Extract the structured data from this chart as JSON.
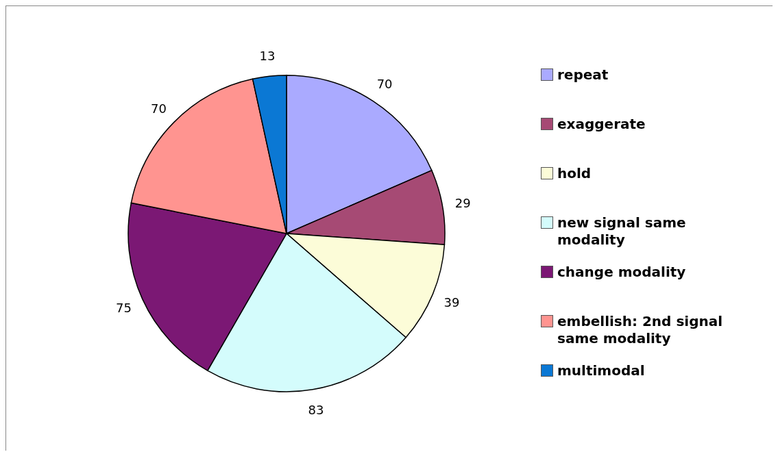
{
  "chart_data": {
    "type": "pie",
    "categories": [
      "repeat",
      "exaggerate",
      "hold",
      "new signal same modality",
      "change modality",
      "embellish: 2nd signal same modality",
      "multimodal"
    ],
    "values": [
      70,
      29,
      39,
      83,
      75,
      70,
      13
    ],
    "colors": [
      "#aaaaff",
      "#a64a74",
      "#fcfcd8",
      "#d4fcfc",
      "#7b1874",
      "#ff9490",
      "#0b78d4"
    ],
    "data_labels": true,
    "legend": "right"
  }
}
